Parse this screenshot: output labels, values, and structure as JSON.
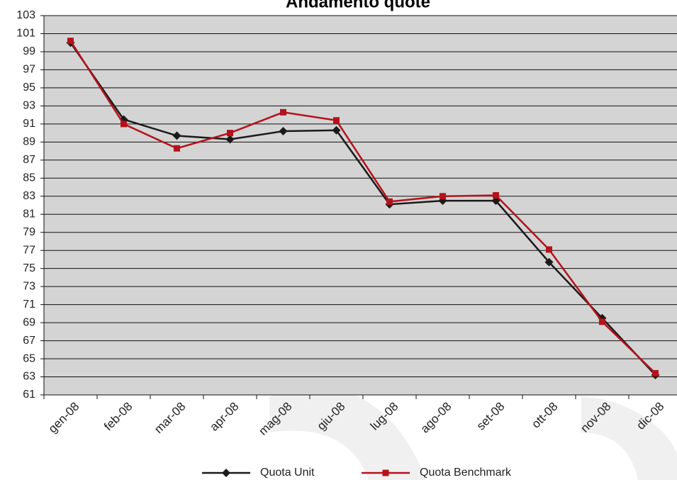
{
  "chart_data": {
    "type": "line",
    "title": "Andamento quote",
    "categories": [
      "gen-08",
      "feb-08",
      "mar-08",
      "apr-08",
      "mag-08",
      "giu-08",
      "lug-08",
      "ago-08",
      "set-08",
      "ott-08",
      "nov-08",
      "dic-08"
    ],
    "series": [
      {
        "name": "Quota Unit",
        "color": "#1a1a1a",
        "marker": "diamond",
        "values": [
          100,
          91.5,
          89.7,
          89.3,
          90.2,
          90.3,
          82.1,
          82.5,
          82.5,
          75.7,
          69.5,
          63.2
        ]
      },
      {
        "name": "Quota Benchmark",
        "color": "#b5121b",
        "marker": "square",
        "values": [
          100.2,
          91.0,
          88.3,
          90.0,
          92.3,
          91.4,
          82.4,
          83.0,
          83.1,
          77.1,
          69.1,
          63.4
        ]
      }
    ],
    "ylim": [
      61,
      103
    ],
    "yticks": [
      61,
      63,
      65,
      67,
      69,
      71,
      73,
      75,
      77,
      79,
      81,
      83,
      85,
      87,
      89,
      91,
      93,
      95,
      97,
      99,
      101,
      103
    ],
    "grid": true,
    "legend": "bottom"
  }
}
